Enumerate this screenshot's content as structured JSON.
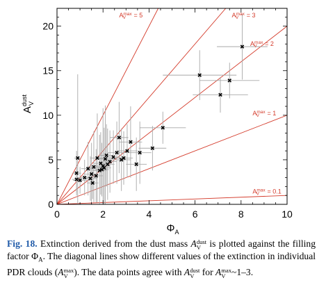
{
  "chart_data": {
    "type": "scatter",
    "xlim": [
      0,
      10
    ],
    "ylim": [
      0,
      22
    ],
    "x_ticks": [
      0,
      2,
      4,
      6,
      8,
      10
    ],
    "y_ticks": [
      0,
      5,
      10,
      15,
      20
    ],
    "xlabel": "Φ",
    "xlabel_sub": "A",
    "ylabel": "A",
    "ylabel_sub": "V",
    "ylabel_sup": "dust",
    "points": [
      {
        "x": 0.85,
        "y": 2.8,
        "xerr": 0.2,
        "yerr": 1.5
      },
      {
        "x": 0.85,
        "y": 3.5,
        "xerr": 0.2,
        "yerr": 2.5
      },
      {
        "x": 0.9,
        "y": 5.2,
        "xerr": 0.15,
        "yerr": 9.4
      },
      {
        "x": 1.0,
        "y": 2.7,
        "xerr": 0.3,
        "yerr": 1.5
      },
      {
        "x": 1.2,
        "y": 3.0,
        "xerr": 0.3,
        "yerr": 2.0
      },
      {
        "x": 1.35,
        "y": 4.0,
        "xerr": 0.3,
        "yerr": 3.0
      },
      {
        "x": 1.45,
        "y": 2.9,
        "xerr": 0.3,
        "yerr": 2.5
      },
      {
        "x": 1.5,
        "y": 3.4,
        "xerr": 0.3,
        "yerr": 3.5
      },
      {
        "x": 1.55,
        "y": 2.4,
        "xerr": 0.25,
        "yerr": 1.8
      },
      {
        "x": 1.6,
        "y": 4.2,
        "xerr": 0.3,
        "yerr": 4.0
      },
      {
        "x": 1.7,
        "y": 3.2,
        "xerr": 0.3,
        "yerr": 3.0
      },
      {
        "x": 1.75,
        "y": 5.2,
        "xerr": 0.3,
        "yerr": 5.0
      },
      {
        "x": 1.85,
        "y": 3.8,
        "xerr": 0.3,
        "yerr": 4.0
      },
      {
        "x": 1.9,
        "y": 4.6,
        "xerr": 0.3,
        "yerr": 3.5
      },
      {
        "x": 1.95,
        "y": 3.9,
        "xerr": 0.3,
        "yerr": 3.0
      },
      {
        "x": 2.0,
        "y": 4.3,
        "xerr": 0.3,
        "yerr": 6.5
      },
      {
        "x": 2.05,
        "y": 4.1,
        "xerr": 0.3,
        "yerr": 4.5
      },
      {
        "x": 2.1,
        "y": 5.1,
        "xerr": 0.3,
        "yerr": 6.0
      },
      {
        "x": 2.15,
        "y": 5.5,
        "xerr": 0.3,
        "yerr": 3.5
      },
      {
        "x": 2.2,
        "y": 4.5,
        "xerr": 0.3,
        "yerr": 4.0
      },
      {
        "x": 2.3,
        "y": 4.8,
        "xerr": 0.3,
        "yerr": 3.5
      },
      {
        "x": 2.45,
        "y": 5.3,
        "xerr": 0.3,
        "yerr": 3.0
      },
      {
        "x": 2.6,
        "y": 5.8,
        "xerr": 0.4,
        "yerr": 3.5
      },
      {
        "x": 2.7,
        "y": 7.5,
        "xerr": 0.4,
        "yerr": 4.0
      },
      {
        "x": 2.8,
        "y": 5.0,
        "xerr": 0.4,
        "yerr": 3.5
      },
      {
        "x": 2.9,
        "y": 5.2,
        "xerr": 0.4,
        "yerr": 3.0
      },
      {
        "x": 3.05,
        "y": 6.0,
        "xerr": 0.45,
        "yerr": 3.0
      },
      {
        "x": 3.2,
        "y": 7.0,
        "xerr": 0.5,
        "yerr": 4.0
      },
      {
        "x": 3.45,
        "y": 4.5,
        "xerr": 0.45,
        "yerr": 3.0
      },
      {
        "x": 3.6,
        "y": 5.8,
        "xerr": 0.5,
        "yerr": 3.5
      },
      {
        "x": 4.15,
        "y": 6.3,
        "xerr": 0.6,
        "yerr": 2.5
      },
      {
        "x": 4.6,
        "y": 8.6,
        "xerr": 1.0,
        "yerr": 1.8
      },
      {
        "x": 6.2,
        "y": 14.5,
        "xerr": 1.6,
        "yerr": 2.8
      },
      {
        "x": 7.1,
        "y": 12.3,
        "xerr": 1.2,
        "yerr": 2.0
      },
      {
        "x": 7.5,
        "y": 13.9,
        "xerr": 1.3,
        "yerr": 2.0
      },
      {
        "x": 8.05,
        "y": 17.7,
        "xerr": 1.1,
        "yerr": 3.7
      }
    ],
    "diagonal_lines": [
      {
        "label": "= 5",
        "slope": 5
      },
      {
        "label": "= 3",
        "slope": 3
      },
      {
        "label": "= 2",
        "slope": 2
      },
      {
        "label": "= 1",
        "slope": 1
      },
      {
        "label": "= 0.1",
        "slope": 0.1
      }
    ],
    "line_label_base": "A",
    "line_label_sub": "V",
    "line_label_sup": "max",
    "colors": {
      "lines": "#d43a2a",
      "points": "#000000",
      "errorbars": "#a8a8a8"
    }
  },
  "caption": {
    "fig_label": "Fig. 18.",
    "text_1": " Extinction derived from the dust mass ",
    "math_A": "A",
    "math_dust": "dust",
    "math_V": "V",
    "text_2": " is plotted against the filling factor Φ",
    "sub_A": "A",
    "text_3": ". The diagonal lines show different values of the extinction in individual PDR clouds (",
    "math_max": "max",
    "text_4": "). The data points agree with ",
    "text_5": " for ",
    "text_6": "~1–3."
  }
}
